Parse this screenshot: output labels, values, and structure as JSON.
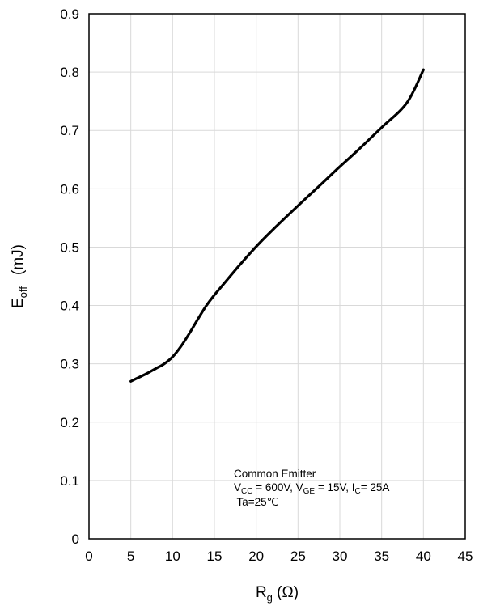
{
  "chart_data": {
    "type": "line",
    "title": "",
    "xlabel": {
      "main": "R",
      "sub": "g",
      "unit": " (Ω)"
    },
    "ylabel": {
      "main": "E",
      "sub": "off",
      "unit": "(mJ)"
    },
    "xlim": [
      0,
      45
    ],
    "ylim": [
      0,
      0.9
    ],
    "x_ticks": [
      "0",
      "5",
      "10",
      "15",
      "20",
      "25",
      "30",
      "35",
      "40",
      "45"
    ],
    "y_ticks": [
      "0",
      "0.1",
      "0.2",
      "0.3",
      "0.4",
      "0.5",
      "0.6",
      "0.7",
      "0.8",
      "0.9"
    ],
    "grid": true,
    "series": [
      {
        "color": "#000000",
        "x": [
          5,
          6,
          7,
          8,
          9,
          10,
          11,
          12,
          13,
          14,
          15,
          16,
          18,
          20,
          22,
          25,
          28,
          30,
          32,
          35,
          38,
          40
        ],
        "y": [
          0.27,
          0.277,
          0.284,
          0.292,
          0.3,
          0.312,
          0.33,
          0.352,
          0.376,
          0.399,
          0.418,
          0.435,
          0.469,
          0.501,
          0.53,
          0.571,
          0.611,
          0.638,
          0.664,
          0.705,
          0.747,
          0.804
        ]
      }
    ],
    "annotation": {
      "line1": "Common Emitter",
      "line2": [
        {
          "t": "V",
          "sub": false
        },
        {
          "t": "CC",
          "sub": true
        },
        {
          "t": " = 600V, V",
          "sub": false
        },
        {
          "t": "GE",
          "sub": true
        },
        {
          "t": " = 15V, I",
          "sub": false
        },
        {
          "t": "C",
          "sub": true
        },
        {
          "t": "= 25A",
          "sub": false
        }
      ],
      "line3": " Ta=25℃"
    }
  }
}
